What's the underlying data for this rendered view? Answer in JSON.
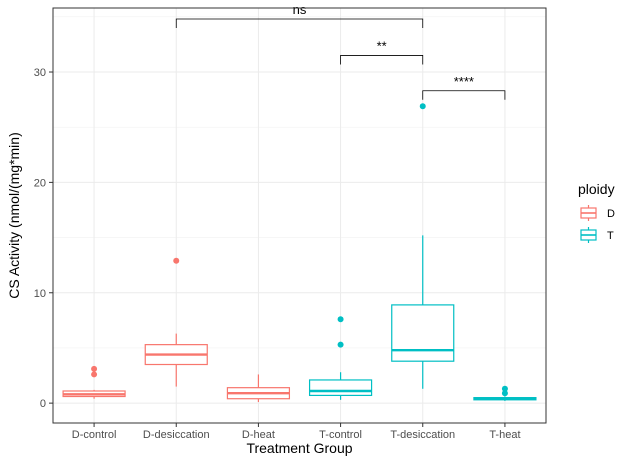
{
  "chart_data": {
    "type": "boxplot",
    "xlabel": "Treatment Group",
    "ylabel": "CS Activity (nmol/(mg*min)",
    "ylim": [
      -1.8,
      35.8
    ],
    "yticks": [
      0,
      10,
      20,
      30
    ],
    "categories": [
      "D-control",
      "D-desiccation",
      "D-heat",
      "T-control",
      "T-desiccation",
      "T-heat"
    ],
    "legend": {
      "title": "ploidy",
      "placement": "right",
      "entries": [
        {
          "label": "D",
          "color": "#F8766D"
        },
        {
          "label": "T",
          "color": "#00BFC4"
        }
      ]
    },
    "boxes": [
      {
        "category": "D-control",
        "ploidy": "D",
        "min": 0.4,
        "q1": 0.6,
        "median": 0.8,
        "q3": 1.1,
        "max": 1.2,
        "outliers": [
          2.6,
          3.1
        ]
      },
      {
        "category": "D-desiccation",
        "ploidy": "D",
        "min": 1.5,
        "q1": 3.5,
        "median": 4.4,
        "q3": 5.3,
        "max": 6.3,
        "outliers": [
          12.9
        ]
      },
      {
        "category": "D-heat",
        "ploidy": "D",
        "min": 0.1,
        "q1": 0.4,
        "median": 0.9,
        "q3": 1.4,
        "max": 2.6,
        "outliers": []
      },
      {
        "category": "T-control",
        "ploidy": "T",
        "min": 0.3,
        "q1": 0.7,
        "median": 1.1,
        "q3": 2.1,
        "max": 2.8,
        "outliers": [
          5.3,
          7.6
        ]
      },
      {
        "category": "T-desiccation",
        "ploidy": "T",
        "min": 1.3,
        "q1": 3.8,
        "median": 4.8,
        "q3": 8.9,
        "max": 15.2,
        "outliers": [
          26.9
        ]
      },
      {
        "category": "T-heat",
        "ploidy": "T",
        "min": 0.2,
        "q1": 0.3,
        "median": 0.4,
        "q3": 0.5,
        "max": 0.6,
        "outliers": [
          0.9,
          1.3
        ]
      }
    ],
    "comparisons": [
      {
        "from": "D-desiccation",
        "to": "T-desiccation",
        "label": "ns",
        "y": 34.8
      },
      {
        "from": "T-control",
        "to": "T-desiccation",
        "label": "**",
        "y": 31.5
      },
      {
        "from": "T-desiccation",
        "to": "T-heat",
        "label": "****",
        "y": 28.3
      }
    ],
    "grid": true,
    "panel_border": true
  }
}
